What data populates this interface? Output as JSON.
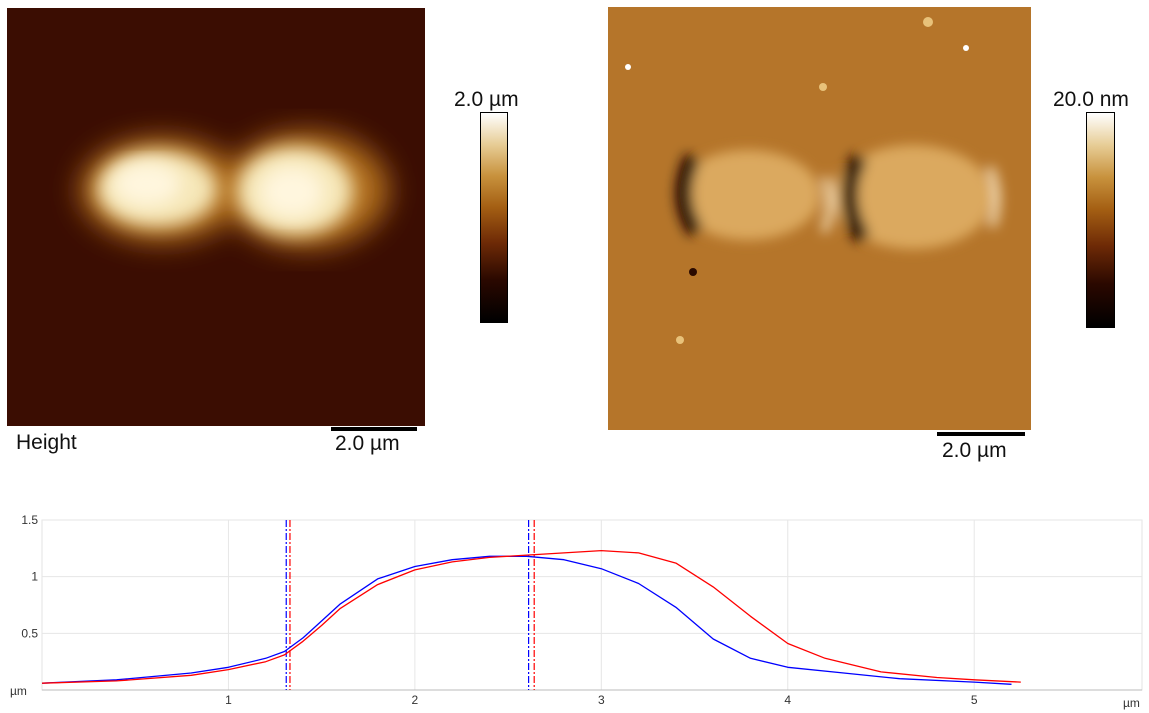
{
  "height_panel": {
    "caption": "Height",
    "colorbar_max": "2.0 µm",
    "scalebar_label": "2.0 µm"
  },
  "amplitude_panel": {
    "colorbar_max": "20.0 nm",
    "scalebar_label": "2.0 µm"
  },
  "colors": {
    "background": "#3b0d02",
    "cell_bright": "#fff4d6",
    "amplitude_base": "#b5752a",
    "series_blue": "#0000ff",
    "series_red": "#ff0000"
  },
  "chart_data": {
    "type": "line",
    "title": "",
    "xlabel": "µm",
    "ylabel": "µm",
    "xlim": [
      0,
      5.9
    ],
    "ylim": [
      0,
      1.5
    ],
    "x_ticks": [
      {
        "value": 1,
        "label": "1"
      },
      {
        "value": 2,
        "label": "2"
      },
      {
        "value": 3,
        "label": "3"
      },
      {
        "value": 4,
        "label": "4"
      },
      {
        "value": 5,
        "label": "5"
      }
    ],
    "y_ticks": [
      {
        "value": 0.5,
        "label": "0.5"
      },
      {
        "value": 1,
        "label": "1"
      },
      {
        "value": 1.5,
        "label": "1.5"
      }
    ],
    "grid": true,
    "series": [
      {
        "color": "#0000ff",
        "x": [
          0,
          0.4,
          0.8,
          1.0,
          1.2,
          1.3,
          1.4,
          1.5,
          1.6,
          1.8,
          2.0,
          2.2,
          2.4,
          2.6,
          2.8,
          3.0,
          3.2,
          3.4,
          3.6,
          3.8,
          4.0,
          4.3,
          4.6,
          5.0,
          5.2
        ],
        "y": [
          0.06,
          0.09,
          0.15,
          0.2,
          0.28,
          0.34,
          0.46,
          0.61,
          0.76,
          0.98,
          1.09,
          1.15,
          1.18,
          1.18,
          1.15,
          1.07,
          0.94,
          0.73,
          0.45,
          0.28,
          0.2,
          0.15,
          0.1,
          0.07,
          0.05
        ]
      },
      {
        "color": "#ff0000",
        "x": [
          0,
          0.4,
          0.8,
          1.0,
          1.2,
          1.3,
          1.4,
          1.5,
          1.6,
          1.8,
          2.0,
          2.2,
          2.4,
          2.6,
          2.8,
          3.0,
          3.2,
          3.4,
          3.6,
          3.8,
          4.0,
          4.2,
          4.5,
          4.8,
          5.0,
          5.25
        ],
        "y": [
          0.06,
          0.08,
          0.13,
          0.18,
          0.25,
          0.31,
          0.43,
          0.57,
          0.72,
          0.93,
          1.06,
          1.13,
          1.17,
          1.19,
          1.21,
          1.23,
          1.21,
          1.12,
          0.91,
          0.65,
          0.41,
          0.28,
          0.16,
          0.11,
          0.09,
          0.07
        ]
      }
    ],
    "cursors": [
      {
        "x": 1.31,
        "color": "#0000ff"
      },
      {
        "x": 1.33,
        "color": "#ff0000"
      },
      {
        "x": 2.61,
        "color": "#0000ff"
      },
      {
        "x": 2.64,
        "color": "#ff0000"
      }
    ]
  }
}
